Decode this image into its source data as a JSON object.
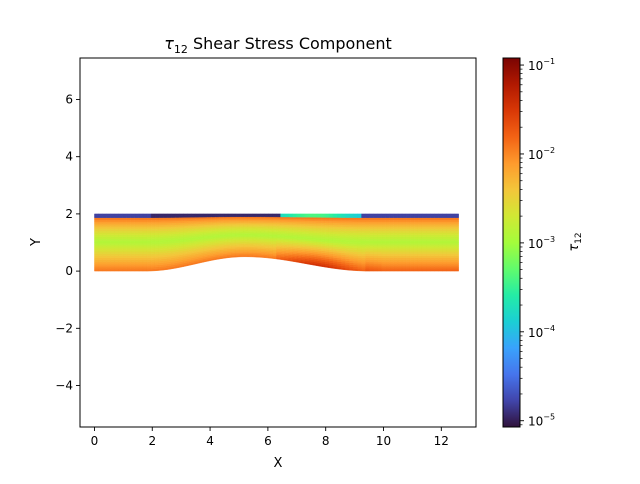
{
  "chart_data": {
    "type": "heatmap",
    "title_symbol": "τ",
    "title_subscript": "12",
    "title_rest": " Shear Stress Component",
    "xlabel": "X",
    "ylabel": "Y",
    "xlim": [
      -0.5,
      13.2
    ],
    "ylim": [
      -5.45,
      7.45
    ],
    "xticks": [
      0,
      2,
      4,
      6,
      8,
      10,
      12
    ],
    "yticks": [
      -4,
      -2,
      0,
      2,
      4,
      6
    ],
    "xtick_labels": [
      "0",
      "2",
      "4",
      "6",
      "8",
      "10",
      "12"
    ],
    "ytick_labels": [
      "−4",
      "−2",
      "0",
      "2",
      "4",
      "6"
    ],
    "channel": {
      "x_range": [
        0,
        12.6
      ],
      "top_wall_y": 2.0,
      "bottom_wall_y": 0.0,
      "bump": {
        "x_start": 1.8,
        "x_peak": 5.2,
        "x_end": 9.5,
        "peak_y": 0.5
      },
      "block_boundaries_x": [
        1.8,
        9.5
      ]
    },
    "colorbar": {
      "label_symbol": "τ",
      "label_subscript": "12",
      "scale": "log",
      "colormap": "turbo",
      "range": [
        8.5e-06,
        0.12
      ],
      "ticks": [
        {
          "value": 1e-05,
          "base": "10",
          "exp": "−5"
        },
        {
          "value": 0.0001,
          "base": "10",
          "exp": "−4"
        },
        {
          "value": 0.001,
          "base": "10",
          "exp": "−3"
        },
        {
          "value": 0.01,
          "base": "10",
          "exp": "−2"
        },
        {
          "value": 0.1,
          "base": "10",
          "exp": "−1"
        }
      ]
    },
    "colors": {
      "turbo_stops": [
        "#30123b",
        "#4145ab",
        "#4675ed",
        "#39a2fc",
        "#1bcfd4",
        "#24eca6",
        "#61fc6c",
        "#a4fc3b",
        "#d1e834",
        "#f3c63a",
        "#fe9b2d",
        "#f36315",
        "#d93806",
        "#b11901",
        "#7a0403"
      ]
    }
  }
}
